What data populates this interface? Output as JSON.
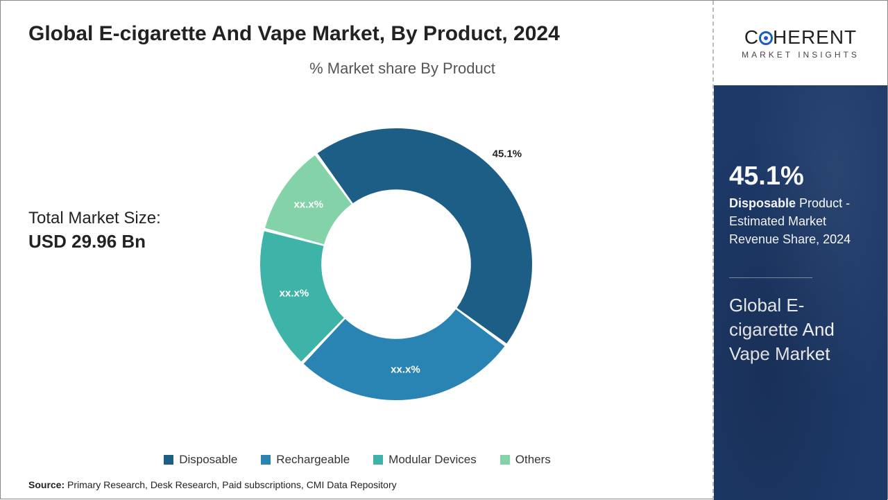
{
  "title": "Global E-cigarette And Vape Market, By Product, 2024",
  "subtitle": "% Market share By Product",
  "market_size": {
    "label": "Total Market Size:",
    "value": "USD 29.96 Bn"
  },
  "chart": {
    "type": "donut",
    "inner_radius_pct": 55,
    "outer_radius_pct": 100,
    "start_angle_deg": -36,
    "background_color": "#ffffff",
    "slices": [
      {
        "key": "disposable",
        "label": "45.1%",
        "value": 45.1,
        "color": "#1d5e86",
        "label_color": "#222222",
        "label_offset_pct": 115
      },
      {
        "key": "rechargeable",
        "label": "xx.x%",
        "value": 27.0,
        "color": "#2a84b3",
        "label_color": "#ffffff",
        "label_offset_pct": 78
      },
      {
        "key": "modular_devices",
        "label": "xx.x%",
        "value": 17.0,
        "color": "#3eb4a8",
        "label_color": "#ffffff",
        "label_offset_pct": 78
      },
      {
        "key": "others",
        "label": "xx.x%",
        "value": 10.9,
        "color": "#84d2a8",
        "label_color": "#ffffff",
        "label_offset_pct": 78
      }
    ]
  },
  "legend": [
    {
      "label": "Disposable",
      "color": "#1d5e86"
    },
    {
      "label": "Rechargeable",
      "color": "#2a84b3"
    },
    {
      "label": "Modular Devices",
      "color": "#3eb4a8"
    },
    {
      "label": "Others",
      "color": "#84d2a8"
    }
  ],
  "source": {
    "label": "Source:",
    "text": "Primary Research, Desk Research, Paid subscriptions, CMI Data Repository"
  },
  "logo": {
    "top_left": "C",
    "top_right": "HERENT",
    "sub": "MARKET INSIGHTS"
  },
  "side_panel": {
    "kpi_value": "45.1%",
    "kpi_bold": "Disposable",
    "kpi_rest": " Product - Estimated Market Revenue Share, 2024",
    "title": "Global E-cigarette And Vape Market",
    "bg_color": "#1d3968",
    "text_color": "#ffffff"
  }
}
